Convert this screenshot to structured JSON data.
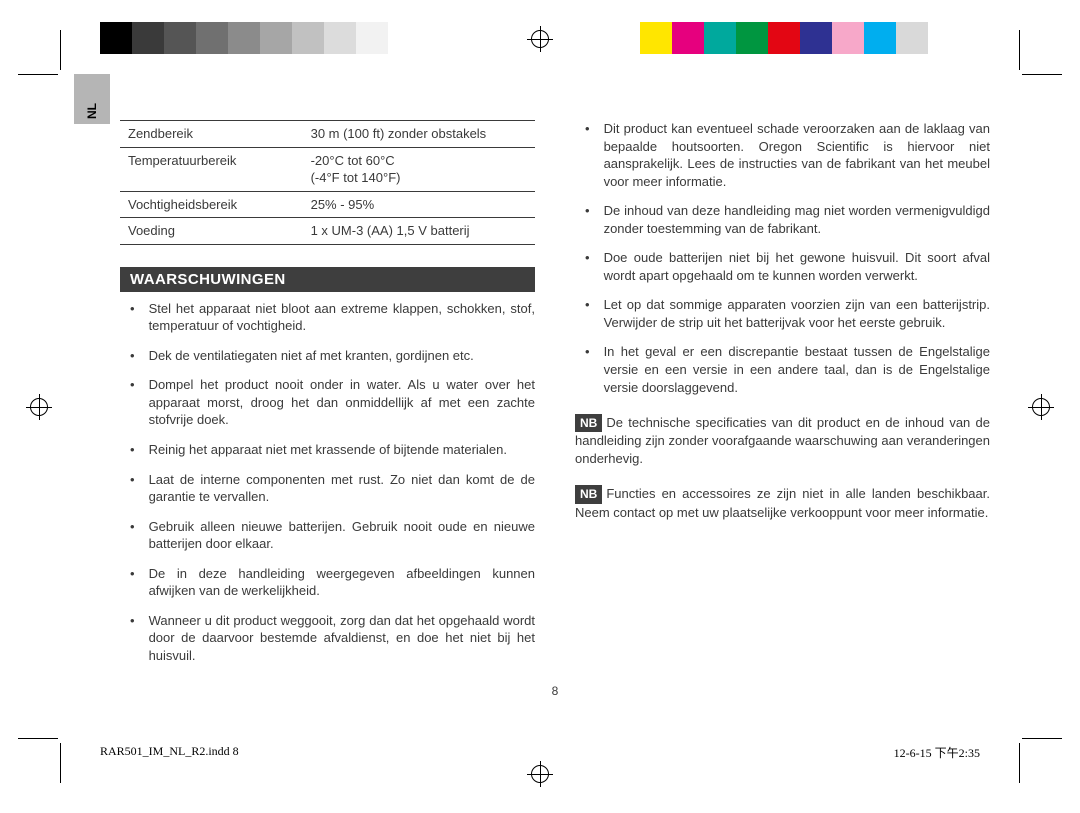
{
  "registration_marks": {
    "left_swatches": [
      "#000000",
      "#3a3a3a",
      "#555555",
      "#707070",
      "#8b8b8b",
      "#a6a6a6",
      "#c1c1c1",
      "#dcdcdc",
      "#f2f2f2",
      "#ffffff"
    ],
    "right_swatches": [
      "#ffe600",
      "#e6007e",
      "#00a99d",
      "#009640",
      "#e30613",
      "#2e3192",
      "#f7a8c9",
      "#00aeef",
      "#d9d9d9",
      "#ffffff"
    ]
  },
  "language_tab": "NL",
  "spec_table": {
    "rows": [
      {
        "label": "Zendbereik",
        "value": "30 m (100 ft) zonder obstakels"
      },
      {
        "label": "Temperatuurbereik",
        "value": "-20°C tot 60°C\n(-4°F tot 140°F)"
      },
      {
        "label": "Vochtigheidsbereik",
        "value": "25% - 95%"
      },
      {
        "label": "Voeding",
        "value": "1 x UM-3 (AA) 1,5 V batterij"
      }
    ]
  },
  "section_heading": "WAARSCHUWINGEN",
  "warnings_left": [
    "Stel het apparaat niet bloot aan extreme klappen, schokken, stof, temperatuur of vochtigheid.",
    "Dek de ventilatiegaten niet af met kranten, gordijnen etc.",
    "Dompel het product nooit onder in water. Als u water over het apparaat morst, droog het dan onmiddellijk af met een zachte stofvrije doek.",
    "Reinig het apparaat niet met krassende of bijtende materialen.",
    "Laat de interne componenten met rust. Zo niet dan komt de de garantie te vervallen.",
    "Gebruik alleen nieuwe batterijen. Gebruik nooit oude en nieuwe batterijen door elkaar.",
    "De in deze handleiding weergegeven afbeeldingen kunnen afwijken van de werkelijkheid.",
    "Wanneer u dit product weggooit, zorg dan dat het opgehaald wordt door de daarvoor bestemde afvaldienst, en doe het niet bij het huisvuil."
  ],
  "warnings_right": [
    "Dit product kan eventueel schade veroorzaken aan de laklaag van bepaalde houtsoorten. Oregon Scientific is hiervoor niet aansprakelijk. Lees de instructies van de fabrikant van het meubel voor meer informatie.",
    "De inhoud van deze handleiding mag niet worden vermenigvuldigd zonder toestemming van de fabrikant.",
    "Doe oude batterijen niet bij het gewone huisvuil. Dit soort afval wordt apart opgehaald om te kunnen worden verwerkt.",
    "Let op dat sommige apparaten voorzien zijn van een batterijstrip. Verwijder de strip uit het batterijvak voor het eerste gebruik.",
    "In het geval er een discrepantie bestaat tussen de Engelstalige versie en een versie in een andere taal, dan is de Engelstalige versie doorslaggevend."
  ],
  "nb_label": "NB",
  "nb_notes": [
    "De technische specificaties van dit product en de inhoud van de handleiding zijn zonder voorafgaande waarschuwing aan veranderingen onderhevig.",
    "Functies en accessoires ze zijn niet in alle landen beschikbaar. Neem contact op met uw plaatselijke verkooppunt voor meer informatie."
  ],
  "page_number": "8",
  "footer": {
    "filename": "RAR501_IM_NL_R2.indd   8",
    "datetime": "12-6-15   下午2:35"
  }
}
